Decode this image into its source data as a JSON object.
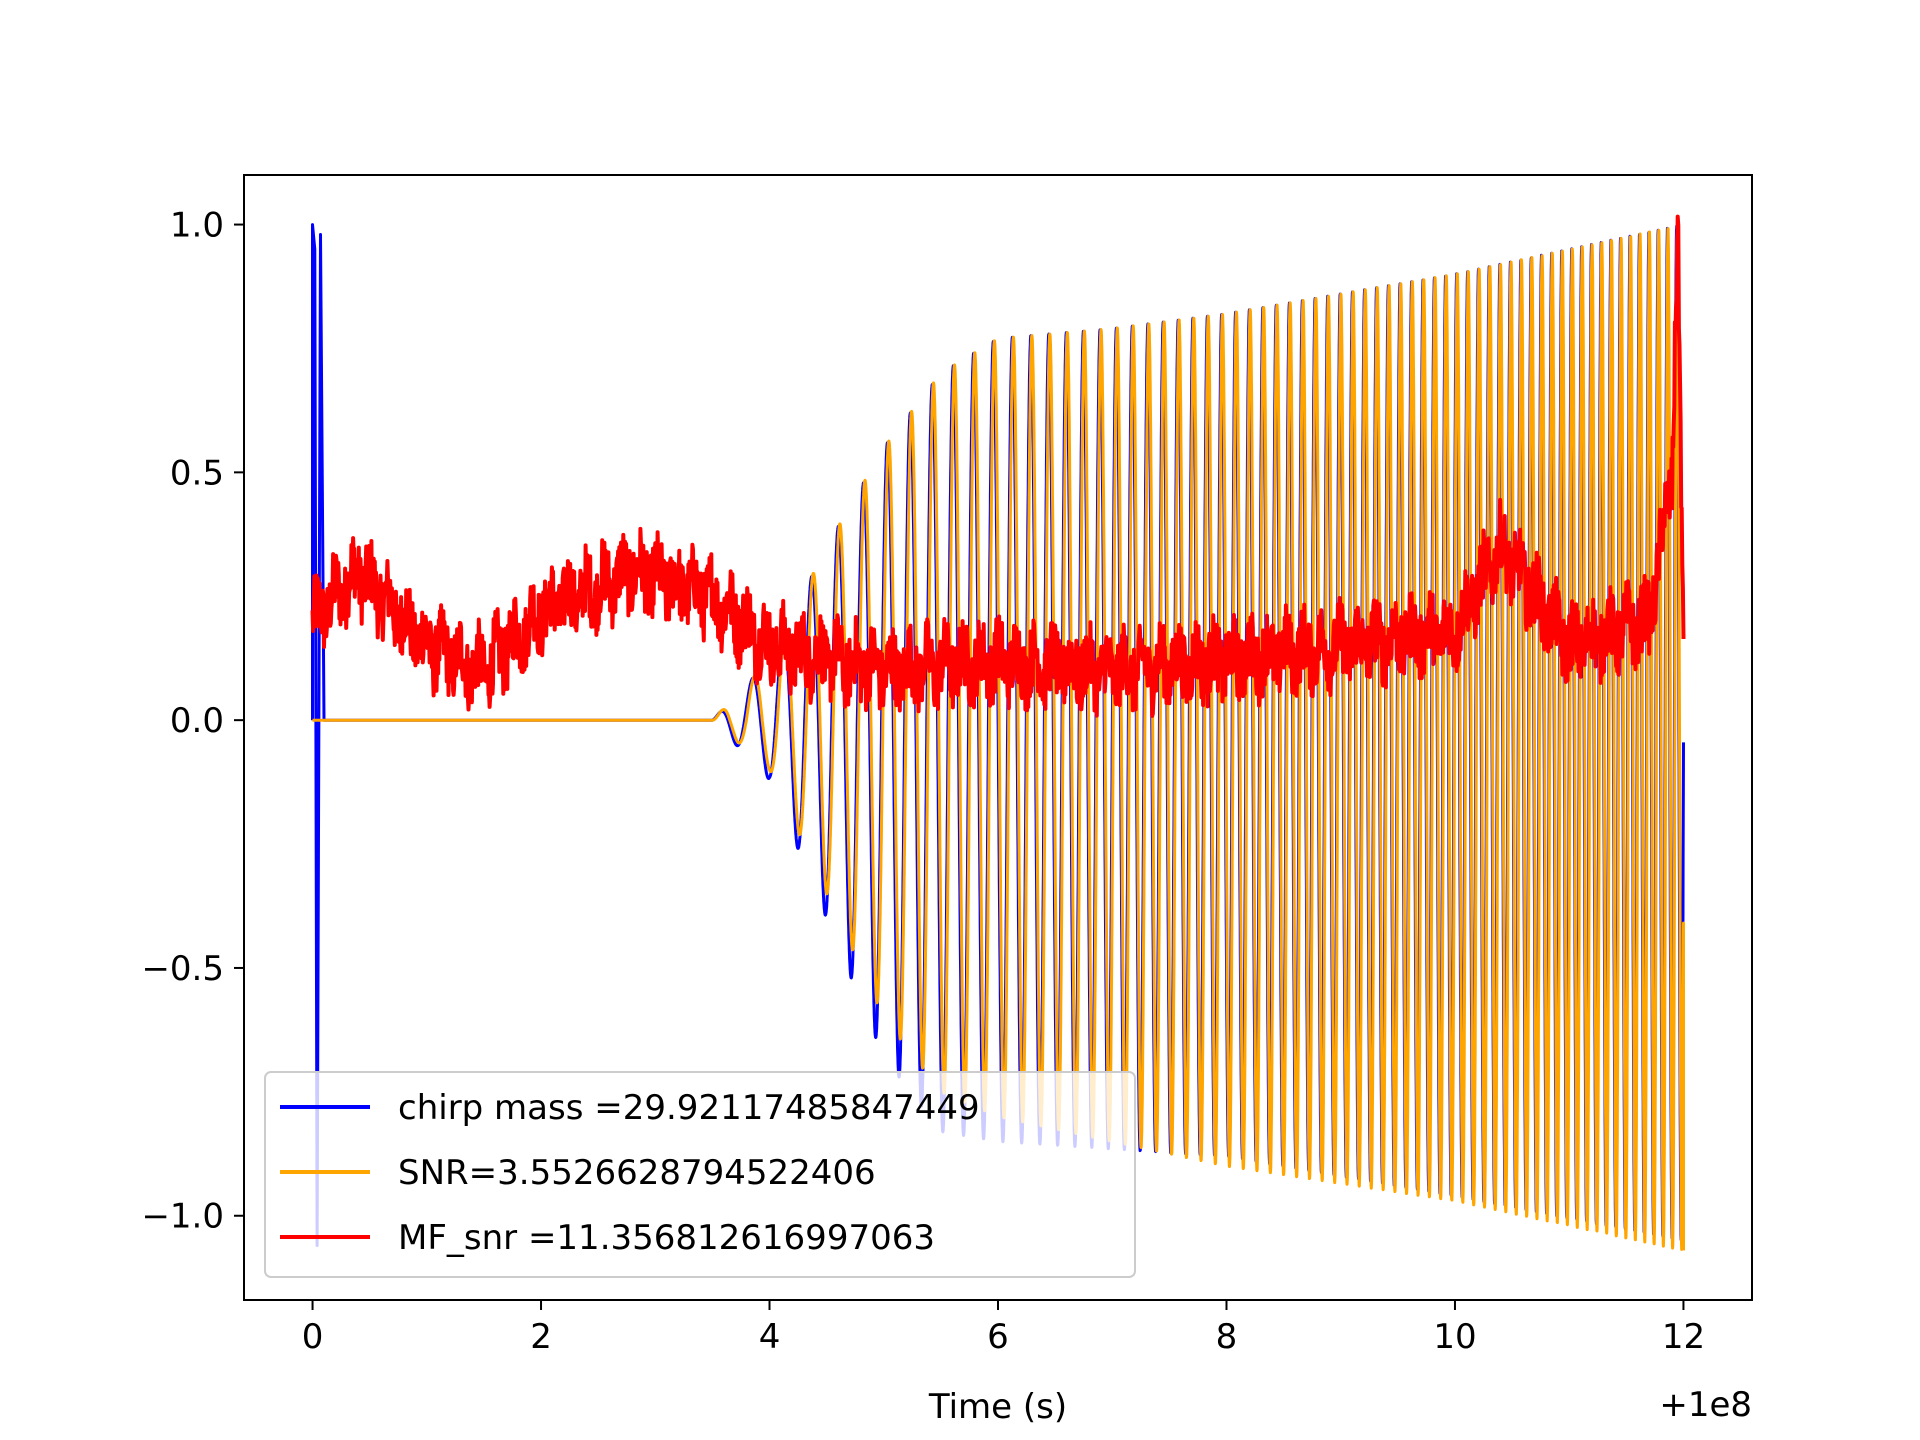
{
  "chart_data": {
    "type": "line",
    "title": "",
    "xlabel": "Time (s)",
    "ylabel": "",
    "x_offset_text": "+1e8",
    "xlim": [
      -0.6,
      12.6
    ],
    "ylim": [
      -1.17,
      1.1
    ],
    "x_ticks": [
      0,
      2,
      4,
      6,
      8,
      10,
      12
    ],
    "x_tick_labels": [
      "0",
      "2",
      "4",
      "6",
      "8",
      "10",
      "12"
    ],
    "y_ticks": [
      1.0,
      0.5,
      0.0,
      -0.5,
      -1.0
    ],
    "y_tick_labels": [
      "1.0",
      "0.5",
      "0.0",
      "−0.5",
      "−1.0"
    ],
    "grid": false,
    "legend_position": "lower-left",
    "series": [
      {
        "name": "chirp mass =29.92117485847449",
        "color": "#0000ff",
        "points": [
          [
            0.0,
            1.0
          ],
          [
            0.02,
            0.9
          ],
          [
            0.05,
            -1.06
          ],
          [
            0.08,
            0.98
          ],
          [
            0.1,
            0.0
          ],
          [
            3.55,
            0.0
          ],
          [
            4.0,
            -0.1
          ],
          [
            4.5,
            -0.4
          ],
          [
            5.0,
            -0.7
          ],
          [
            5.5,
            -0.85
          ],
          [
            5.9,
            -0.82
          ],
          [
            6.0,
            0.77
          ],
          [
            8.0,
            0.8
          ],
          [
            12.0,
            1.0
          ],
          [
            12.0,
            -1.05
          ],
          [
            10.0,
            -0.95
          ],
          [
            8.0,
            -0.88
          ],
          [
            6.5,
            -0.85
          ]
        ]
      },
      {
        "name": "SNR=3.5526628794522406",
        "color": "#ffa500",
        "points": [
          [
            0.0,
            0.0
          ],
          [
            3.5,
            0.0
          ],
          [
            4.0,
            0.1
          ],
          [
            4.5,
            0.4
          ],
          [
            5.0,
            0.6
          ],
          [
            5.5,
            0.72
          ],
          [
            6.0,
            0.77
          ],
          [
            7.0,
            0.79
          ],
          [
            8.0,
            0.82
          ],
          [
            9.0,
            0.86
          ],
          [
            10.0,
            0.9
          ],
          [
            11.0,
            0.95
          ],
          [
            12.0,
            1.0
          ],
          [
            12.0,
            -1.07
          ],
          [
            11.0,
            -1.0
          ],
          [
            10.0,
            -0.97
          ],
          [
            8.0,
            -0.9
          ],
          [
            6.0,
            -0.78
          ],
          [
            5.0,
            -0.55
          ],
          [
            4.0,
            -0.12
          ]
        ]
      },
      {
        "name": "MF_snr =11.356812616997063",
        "color": "#ff0000",
        "points": [
          [
            0.0,
            0.2
          ],
          [
            0.4,
            0.3
          ],
          [
            1.0,
            0.15
          ],
          [
            1.5,
            0.1
          ],
          [
            2.0,
            0.22
          ],
          [
            2.8,
            0.3
          ],
          [
            3.5,
            0.25
          ],
          [
            4.0,
            0.15
          ],
          [
            5.0,
            0.1
          ],
          [
            6.0,
            0.12
          ],
          [
            7.0,
            0.1
          ],
          [
            8.0,
            0.12
          ],
          [
            9.0,
            0.15
          ],
          [
            10.0,
            0.18
          ],
          [
            10.4,
            0.35
          ],
          [
            11.0,
            0.15
          ],
          [
            11.7,
            0.2
          ],
          [
            11.9,
            0.5
          ],
          [
            11.95,
            1.0
          ],
          [
            12.0,
            0.1
          ]
        ]
      }
    ]
  }
}
